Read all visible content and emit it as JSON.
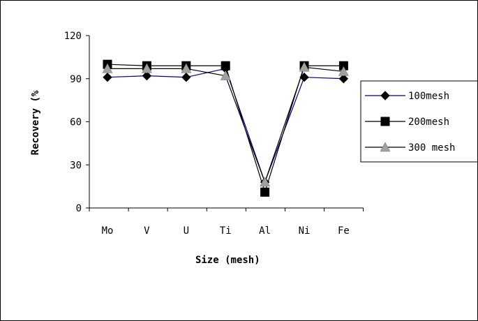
{
  "chart_data": {
    "type": "line",
    "title": "",
    "xlabel": "Size (mesh)",
    "ylabel": "Recovery (%",
    "categories": [
      "Mo",
      "V",
      "U",
      "Ti",
      "Al",
      "Ni",
      "Fe"
    ],
    "ylim": [
      0,
      120
    ],
    "yticks": [
      0,
      30,
      60,
      90,
      120
    ],
    "grid": false,
    "legend_position": "right",
    "series": [
      {
        "name": "100mesh",
        "values": [
          91,
          92,
          91,
          97,
          18,
          91,
          90
        ],
        "color": "#000080",
        "marker": "diamond",
        "marker_color": "#000000"
      },
      {
        "name": "200mesh",
        "values": [
          100,
          99,
          99,
          99,
          11,
          99,
          99
        ],
        "color": "#000000",
        "marker": "square",
        "marker_color": "#000000"
      },
      {
        "name": "300 mesh",
        "values": [
          97,
          97,
          97,
          92,
          18,
          98,
          95
        ],
        "color": "#000000",
        "marker": "triangle",
        "marker_color": "#a0a0a0"
      }
    ]
  }
}
